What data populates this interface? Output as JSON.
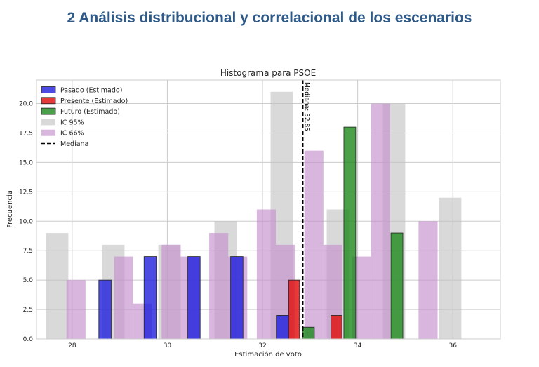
{
  "page": {
    "heading": "2 Análisis distribucional y correlacional de los escenarios"
  },
  "chart_data": {
    "type": "bar",
    "title": "Histograma para PSOE",
    "xlabel": "Estimación de voto",
    "ylabel": "Frecuencia",
    "xlim": [
      27.25,
      37.0
    ],
    "ylim": [
      0,
      22
    ],
    "xticks": [
      28,
      30,
      32,
      34,
      36
    ],
    "yticks": [
      0.0,
      2.5,
      5.0,
      7.5,
      10.0,
      12.5,
      15.0,
      17.5,
      20.0
    ],
    "grid": true,
    "legend_position": "top-left",
    "median": {
      "x": 32.85,
      "label": "Mediana: 32.85"
    },
    "colors": {
      "ic95": "#c0c0c0",
      "ic66": "#c38fcc",
      "pasado": "#1f1fdd",
      "presente": "#e01818",
      "futuro": "#1d8a1d"
    },
    "series": [
      {
        "name": "IC 95%",
        "bins": [
          {
            "x0": 27.45,
            "x1": 27.92,
            "value": 9
          },
          {
            "x0": 28.63,
            "x1": 29.1,
            "value": 8
          },
          {
            "x0": 29.81,
            "x1": 30.28,
            "value": 8
          },
          {
            "x0": 30.99,
            "x1": 31.46,
            "value": 10
          },
          {
            "x0": 32.17,
            "x1": 32.64,
            "value": 21
          },
          {
            "x0": 33.35,
            "x1": 33.82,
            "value": 11
          },
          {
            "x0": 34.53,
            "x1": 35.0,
            "value": 20
          },
          {
            "x0": 35.71,
            "x1": 36.18,
            "value": 12
          }
        ]
      },
      {
        "name": "IC 66%",
        "bins": [
          {
            "x0": 27.88,
            "x1": 28.28,
            "value": 5
          },
          {
            "x0": 28.88,
            "x1": 29.28,
            "value": 7
          },
          {
            "x0": 29.28,
            "x1": 29.68,
            "value": 3
          },
          {
            "x0": 29.88,
            "x1": 30.28,
            "value": 8
          },
          {
            "x0": 30.28,
            "x1": 30.68,
            "value": 7
          },
          {
            "x0": 30.88,
            "x1": 31.28,
            "value": 9
          },
          {
            "x0": 31.28,
            "x1": 31.68,
            "value": 7
          },
          {
            "x0": 31.88,
            "x1": 32.28,
            "value": 11
          },
          {
            "x0": 32.28,
            "x1": 32.68,
            "value": 8
          },
          {
            "x0": 32.88,
            "x1": 33.28,
            "value": 16
          },
          {
            "x0": 33.28,
            "x1": 33.68,
            "value": 8
          },
          {
            "x0": 33.88,
            "x1": 34.28,
            "value": 7
          },
          {
            "x0": 34.28,
            "x1": 34.68,
            "value": 20
          },
          {
            "x0": 35.28,
            "x1": 35.68,
            "value": 10
          }
        ]
      },
      {
        "name": "Pasado (Estimado)",
        "bins": [
          {
            "x0": 28.56,
            "x1": 28.82,
            "value": 5
          },
          {
            "x0": 29.51,
            "x1": 29.77,
            "value": 7
          },
          {
            "x0": 30.43,
            "x1": 30.69,
            "value": 7
          },
          {
            "x0": 31.33,
            "x1": 31.59,
            "value": 7
          },
          {
            "x0": 32.29,
            "x1": 32.55,
            "value": 2
          }
        ]
      },
      {
        "name": "Presente (Estimado)",
        "bins": [
          {
            "x0": 32.55,
            "x1": 32.78,
            "value": 5
          },
          {
            "x0": 33.44,
            "x1": 33.67,
            "value": 2
          }
        ]
      },
      {
        "name": "Futuro (Estimado)",
        "bins": [
          {
            "x0": 32.84,
            "x1": 33.09,
            "value": 1
          },
          {
            "x0": 33.71,
            "x1": 33.96,
            "value": 18
          },
          {
            "x0": 34.7,
            "x1": 34.95,
            "value": 9
          }
        ]
      },
      {
        "name": "Mediana"
      }
    ]
  }
}
